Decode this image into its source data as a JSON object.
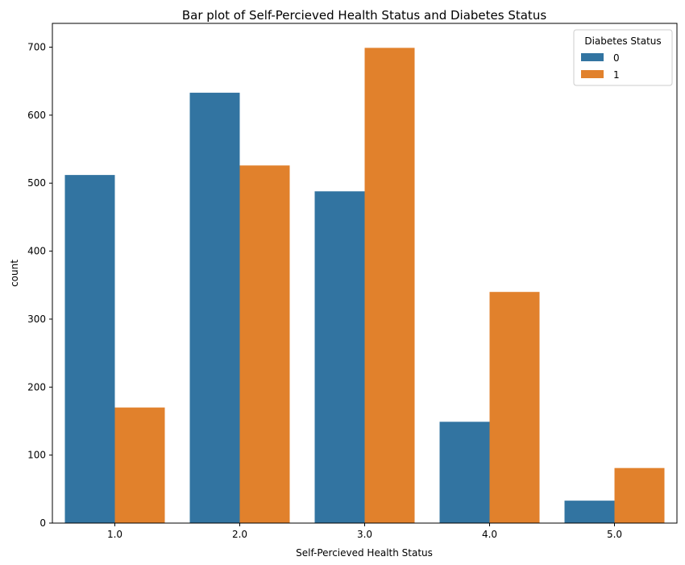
{
  "chart_data": {
    "type": "bar",
    "title": "Bar plot of Self-Percieved Health Status and Diabetes Status",
    "xlabel": "Self-Percieved Health Status",
    "ylabel": "count",
    "categories": [
      "1.0",
      "2.0",
      "3.0",
      "4.0",
      "5.0"
    ],
    "series": [
      {
        "name": "0",
        "color": "#3274a1",
        "values": [
          512,
          633,
          488,
          149,
          33
        ]
      },
      {
        "name": "1",
        "color": "#e1812c",
        "values": [
          170,
          526,
          699,
          340,
          81
        ]
      }
    ],
    "ylim": [
      0,
      735
    ],
    "yticks": [
      0,
      100,
      200,
      300,
      400,
      500,
      600,
      700
    ],
    "grid": false,
    "legend": {
      "title": "Diabetes Status",
      "placement": "top-right"
    }
  }
}
